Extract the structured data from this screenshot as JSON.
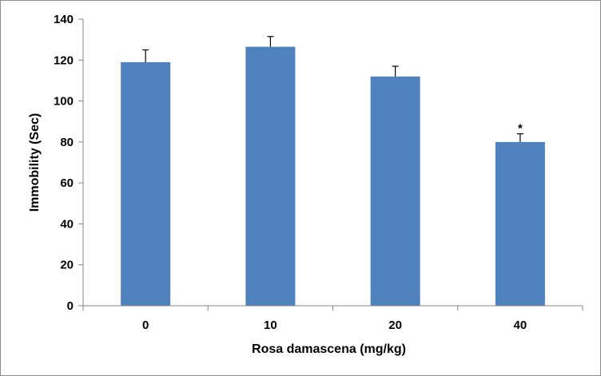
{
  "chart_data": {
    "type": "bar",
    "title": "",
    "categories": [
      "0",
      "10",
      "20",
      "40"
    ],
    "series": [
      {
        "values": [
          119,
          126.5,
          112,
          80
        ],
        "error": [
          6,
          5,
          5,
          4
        ],
        "annotations": [
          "",
          "",
          "",
          "*"
        ]
      }
    ],
    "xlabel": "Rosa damascena (mg/kg)",
    "ylabel": "Immobility (Sec)",
    "ylim": [
      0,
      140
    ],
    "yticks": [
      0,
      20,
      40,
      60,
      80,
      100,
      120,
      140
    ],
    "grid": false,
    "legend": "none",
    "colors": {
      "bar": "#4f81bd",
      "axis": "#868686",
      "error": "#000000"
    }
  }
}
